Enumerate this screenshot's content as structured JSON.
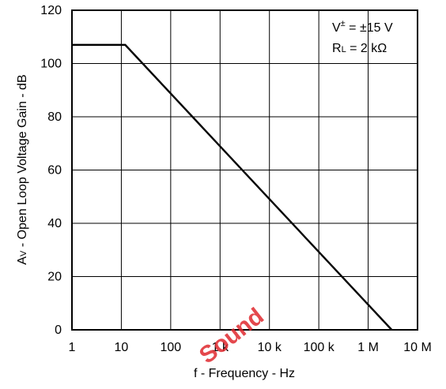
{
  "chart_data": {
    "type": "line",
    "xlabel": "f - Frequency - Hz",
    "ylabel": "Av - Open Loop Voltage Gain - dB",
    "ylabel_main": "A",
    "ylabel_sub": "V",
    "ylabel_rest": " - Open Loop Voltage Gain - dB",
    "xscale": "log",
    "xlim": [
      1,
      10000000
    ],
    "ylim": [
      0,
      120
    ],
    "grid": true,
    "x_ticks": [
      1,
      10,
      100,
      1000,
      10000,
      100000,
      1000000,
      10000000
    ],
    "x_tick_labels": [
      "1",
      "10",
      "100",
      "1 k",
      "10 k",
      "100 k",
      "1 M",
      "10 M"
    ],
    "y_ticks": [
      0,
      20,
      40,
      60,
      80,
      100,
      120
    ],
    "y_tick_labels": [
      "0",
      "20",
      "40",
      "60",
      "80",
      "100",
      "120"
    ],
    "series": [
      {
        "x": [
          1,
          12,
          3000000
        ],
        "y": [
          107,
          107,
          0
        ]
      }
    ],
    "annotations": {
      "supply": {
        "main": "V",
        "sup": "±",
        "rest": " = ±15 V"
      },
      "load": {
        "main": "R",
        "sub": "L",
        "rest": " = 2 kΩ"
      }
    }
  },
  "watermark": "Sound",
  "colors": {
    "watermark": "#e0292e",
    "line": "#000000"
  }
}
